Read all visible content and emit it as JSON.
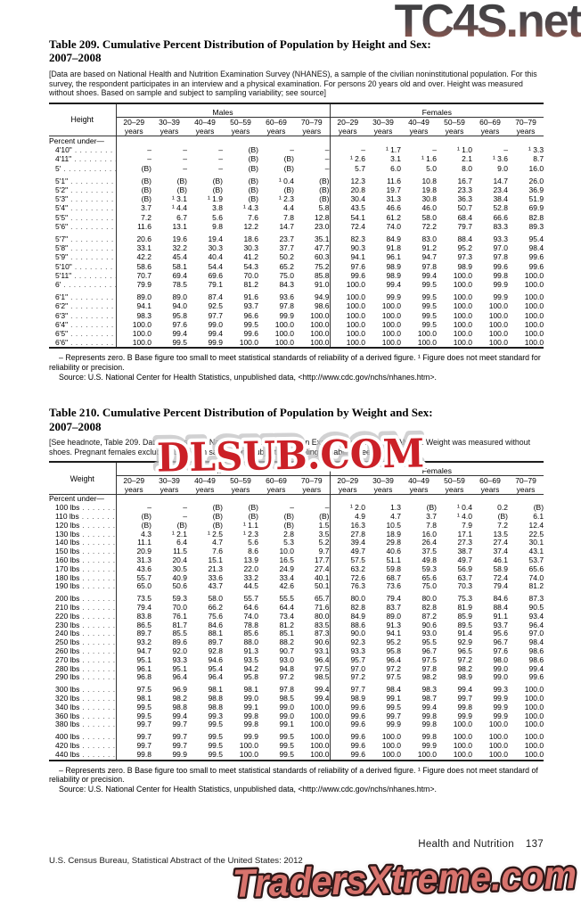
{
  "watermarks": {
    "top": "TC4S.net",
    "middle": "DLSUB.COM",
    "bottom": "TradersXtreme.com"
  },
  "shared": {
    "group_headers": [
      "Males",
      "Females"
    ],
    "age_groups": [
      "20–29",
      "30–39",
      "40–49",
      "50–59",
      "60–69",
      "70–79"
    ],
    "years_word": "years"
  },
  "tables": [
    {
      "title_line1": "Table 209. Cumulative Percent Distribution of Population by Height and Sex:",
      "title_line2": "2007–2008",
      "headnote": "[Data are based on National Health and Nutrition Examination Survey (NHANES), a sample of the civilian noninstitutional population. For this survey, the respondent participates in an interview and a physical examination. For persons 20 years old and over. Height was measured without shoes. Based on sample and subject to sampling variability; see source]",
      "stub_header": "Height",
      "section_label": "Percent under—",
      "rows": [
        {
          "label": "4'10\"",
          "group_start": false,
          "values": [
            "–",
            "–",
            "–",
            "(B)",
            "–",
            "–",
            "–",
            "¹ 1.7",
            "–",
            "¹ 1.0",
            "–",
            "¹ 3.3"
          ]
        },
        {
          "label": "4'11\"",
          "group_start": false,
          "values": [
            "–",
            "–",
            "–",
            "(B)",
            "(B)",
            "–",
            "¹ 2.6",
            "3.1",
            "¹ 1.6",
            "2.1",
            "¹ 3.6",
            "8.7"
          ]
        },
        {
          "label": "5'",
          "group_start": false,
          "values": [
            "(B)",
            "–",
            "–",
            "(B)",
            "(B)",
            "–",
            "5.7",
            "6.0",
            "5.0",
            "8.0",
            "9.0",
            "16.0"
          ]
        },
        {
          "label": "5'1\"",
          "group_start": true,
          "values": [
            "(B)",
            "(B)",
            "(B)",
            "(B)",
            "¹ 0.4",
            "(B)",
            "12.3",
            "11.6",
            "10.8",
            "16.7",
            "14.7",
            "26.0"
          ]
        },
        {
          "label": "5'2\"",
          "group_start": false,
          "values": [
            "(B)",
            "(B)",
            "(B)",
            "(B)",
            "(B)",
            "(B)",
            "20.8",
            "19.7",
            "19.8",
            "23.3",
            "23.4",
            "36.9"
          ]
        },
        {
          "label": "5'3\"",
          "group_start": false,
          "values": [
            "(B)",
            "¹ 3.1",
            "¹ 1.9",
            "(B)",
            "¹ 2.3",
            "(B)",
            "30.4",
            "31.3",
            "30.8",
            "36.3",
            "38.4",
            "51.9"
          ]
        },
        {
          "label": "5'4\"",
          "group_start": false,
          "values": [
            "3.7",
            "¹ 4.4",
            "3.8",
            "¹ 4.3",
            "4.4",
            "5.8",
            "43.5",
            "46.6",
            "46.0",
            "50.7",
            "52.8",
            "69.9"
          ]
        },
        {
          "label": "5'5\"",
          "group_start": false,
          "values": [
            "7.2",
            "6.7",
            "5.6",
            "7.6",
            "7.8",
            "12.8",
            "54.1",
            "61.2",
            "58.0",
            "68.4",
            "66.6",
            "82.8"
          ]
        },
        {
          "label": "5'6\"",
          "group_start": false,
          "values": [
            "11.6",
            "13.1",
            "9.8",
            "12.2",
            "14.7",
            "23.0",
            "72.4",
            "74.0",
            "72.2",
            "79.7",
            "83.3",
            "89.3"
          ]
        },
        {
          "label": "5'7\"",
          "group_start": true,
          "values": [
            "20.6",
            "19.6",
            "19.4",
            "18.6",
            "23.7",
            "35.1",
            "82.3",
            "84.9",
            "83.0",
            "88.4",
            "93.3",
            "95.4"
          ]
        },
        {
          "label": "5'8\"",
          "group_start": false,
          "values": [
            "33.1",
            "32.2",
            "30.3",
            "30.3",
            "37.7",
            "47.7",
            "90.3",
            "91.8",
            "91.2",
            "95.2",
            "97.0",
            "98.4"
          ]
        },
        {
          "label": "5'9\"",
          "group_start": false,
          "values": [
            "42.2",
            "45.4",
            "40.4",
            "41.2",
            "50.2",
            "60.3",
            "94.1",
            "96.1",
            "94.7",
            "97.3",
            "97.8",
            "99.6"
          ]
        },
        {
          "label": "5'10\"",
          "group_start": false,
          "values": [
            "58.6",
            "58.1",
            "54.4",
            "54.3",
            "65.2",
            "75.2",
            "97.6",
            "98.9",
            "97.8",
            "98.9",
            "99.6",
            "99.6"
          ]
        },
        {
          "label": "5'11\"",
          "group_start": false,
          "values": [
            "70.7",
            "69.4",
            "69.6",
            "70.0",
            "75.0",
            "85.8",
            "99.6",
            "98.9",
            "99.4",
            "100.0",
            "99.8",
            "100.0"
          ]
        },
        {
          "label": "6'",
          "group_start": false,
          "values": [
            "79.9",
            "78.5",
            "79.1",
            "81.2",
            "84.3",
            "91.0",
            "100.0",
            "99.4",
            "99.5",
            "100.0",
            "99.9",
            "100.0"
          ]
        },
        {
          "label": "6'1\"",
          "group_start": true,
          "values": [
            "89.0",
            "89.0",
            "87.4",
            "91.6",
            "93.6",
            "94.9",
            "100.0",
            "99.9",
            "99.5",
            "100.0",
            "99.9",
            "100.0"
          ]
        },
        {
          "label": "6'2\"",
          "group_start": false,
          "values": [
            "94.1",
            "94.0",
            "92.5",
            "93.7",
            "97.8",
            "98.6",
            "100.0",
            "100.0",
            "99.5",
            "100.0",
            "100.0",
            "100.0"
          ]
        },
        {
          "label": "6'3\"",
          "group_start": false,
          "values": [
            "98.3",
            "95.8",
            "97.7",
            "96.6",
            "99.9",
            "100.0",
            "100.0",
            "100.0",
            "99.5",
            "100.0",
            "100.0",
            "100.0"
          ]
        },
        {
          "label": "6'4\"",
          "group_start": false,
          "values": [
            "100.0",
            "97.6",
            "99.0",
            "99.5",
            "100.0",
            "100.0",
            "100.0",
            "100.0",
            "99.5",
            "100.0",
            "100.0",
            "100.0"
          ]
        },
        {
          "label": "6'5\"",
          "group_start": false,
          "values": [
            "100.0",
            "99.4",
            "99.4",
            "99.6",
            "100.0",
            "100.0",
            "100.0",
            "100.0",
            "100.0",
            "100.0",
            "100.0",
            "100.0"
          ]
        },
        {
          "label": "6'6\"",
          "group_start": false,
          "values": [
            "100.0",
            "99.5",
            "99.9",
            "100.0",
            "100.0",
            "100.0",
            "100.0",
            "100.0",
            "100.0",
            "100.0",
            "100.0",
            "100.0"
          ]
        }
      ],
      "footnote": "– Represents zero. B Base figure too small to meet statistical standards of reliability of a derived figure. ¹ Figure does not meet standard for reliability or precision.",
      "source": "Source: U.S. National Center for Health Statistics, unpublished data, <http://www.cdc.gov/nchs/nhanes.htm>."
    },
    {
      "title_line1": "Table 210. Cumulative Percent Distribution of Population by Weight and Sex:",
      "title_line2": "2007–2008",
      "headnote": "[See headnote, Table 209. Data are based on National Health and Nutrition Examination Survey (NHANES). Weight was measured without shoes. Pregnant females excluded. Based on sample and subject to sampling variability; see source]",
      "stub_header": "Weight",
      "section_label": "Percent under—",
      "rows": [
        {
          "label": "100 lbs",
          "group_start": false,
          "values": [
            "–",
            "–",
            "(B)",
            "(B)",
            "–",
            "–",
            "¹ 2.0",
            "1.3",
            "(B)",
            "¹ 0.4",
            "0.2",
            "(B)"
          ]
        },
        {
          "label": "110 lbs",
          "group_start": false,
          "values": [
            "(B)",
            "–",
            "(B)",
            "(B)",
            "(B)",
            "(B)",
            "4.9",
            "4.7",
            "3.7",
            "¹ 4.0",
            "(B)",
            "6.1"
          ]
        },
        {
          "label": "120 lbs",
          "group_start": false,
          "values": [
            "(B)",
            "(B)",
            "(B)",
            "¹ 1.1",
            "(B)",
            "1.5",
            "16.3",
            "10.5",
            "7.8",
            "7.9",
            "7.2",
            "12.4"
          ]
        },
        {
          "label": "130 lbs",
          "group_start": false,
          "values": [
            "4.3",
            "¹ 2.1",
            "¹ 2.5",
            "¹ 2.3",
            "2.8",
            "3.5",
            "27.8",
            "18.9",
            "16.0",
            "17.1",
            "13.5",
            "22.5"
          ]
        },
        {
          "label": "140 lbs",
          "group_start": false,
          "values": [
            "11.1",
            "6.4",
            "4.7",
            "5.6",
            "5.3",
            "5.2",
            "39.4",
            "29.8",
            "26.4",
            "27.3",
            "27.4",
            "30.1"
          ]
        },
        {
          "label": "150 lbs",
          "group_start": false,
          "values": [
            "20.9",
            "11.5",
            "7.6",
            "8.6",
            "10.0",
            "9.7",
            "49.7",
            "40.6",
            "37.5",
            "38.7",
            "37.4",
            "43.1"
          ]
        },
        {
          "label": "160 lbs",
          "group_start": false,
          "values": [
            "31.3",
            "20.4",
            "15.1",
            "13.9",
            "16.5",
            "17.7",
            "57.5",
            "51.1",
            "49.8",
            "49.7",
            "46.1",
            "53.7"
          ]
        },
        {
          "label": "170 lbs",
          "group_start": false,
          "values": [
            "43.6",
            "30.5",
            "21.3",
            "22.0",
            "24.9",
            "27.4",
            "63.2",
            "59.8",
            "59.3",
            "56.9",
            "58.9",
            "65.6"
          ]
        },
        {
          "label": "180 lbs",
          "group_start": false,
          "values": [
            "55.7",
            "40.9",
            "33.6",
            "33.2",
            "33.4",
            "40.1",
            "72.6",
            "68.7",
            "65.6",
            "63.7",
            "72.4",
            "74.0"
          ]
        },
        {
          "label": "190 lbs",
          "group_start": false,
          "values": [
            "65.0",
            "50.6",
            "43.7",
            "44.5",
            "42.6",
            "50.1",
            "76.3",
            "73.6",
            "75.0",
            "70.3",
            "79.4",
            "81.2"
          ]
        },
        {
          "label": "200 lbs",
          "group_start": true,
          "values": [
            "73.5",
            "59.3",
            "58.0",
            "55.7",
            "55.5",
            "65.7",
            "80.0",
            "79.4",
            "80.0",
            "75.3",
            "84.6",
            "87.3"
          ]
        },
        {
          "label": "210 lbs",
          "group_start": false,
          "values": [
            "79.4",
            "70.0",
            "66.2",
            "64.6",
            "64.4",
            "71.6",
            "82.8",
            "83.7",
            "82.8",
            "81.9",
            "88.4",
            "90.5"
          ]
        },
        {
          "label": "220 lbs",
          "group_start": false,
          "values": [
            "83.8",
            "76.1",
            "75.6",
            "74.0",
            "73.4",
            "80.0",
            "84.9",
            "89.0",
            "87.2",
            "85.9",
            "91.1",
            "93.4"
          ]
        },
        {
          "label": "230 lbs",
          "group_start": false,
          "values": [
            "86.5",
            "81.7",
            "84.6",
            "78.8",
            "81.2",
            "83.5",
            "88.6",
            "91.3",
            "90.6",
            "89.5",
            "93.7",
            "96.4"
          ]
        },
        {
          "label": "240 lbs",
          "group_start": false,
          "values": [
            "89.7",
            "85.5",
            "88.1",
            "85.6",
            "85.1",
            "87.3",
            "90.0",
            "94.1",
            "93.0",
            "91.4",
            "95.6",
            "97.0"
          ]
        },
        {
          "label": "250 lbs",
          "group_start": false,
          "values": [
            "93.2",
            "89.6",
            "89.7",
            "88.0",
            "88.2",
            "90.6",
            "92.3",
            "95.2",
            "95.5",
            "92.9",
            "96.7",
            "98.4"
          ]
        },
        {
          "label": "260 lbs",
          "group_start": false,
          "values": [
            "94.7",
            "92.0",
            "92.8",
            "91.3",
            "90.7",
            "93.1",
            "93.3",
            "95.8",
            "96.7",
            "96.5",
            "97.6",
            "98.6"
          ]
        },
        {
          "label": "270 lbs",
          "group_start": false,
          "values": [
            "95.1",
            "93.3",
            "94.6",
            "93.5",
            "93.0",
            "96.4",
            "95.7",
            "96.4",
            "97.5",
            "97.2",
            "98.0",
            "98.6"
          ]
        },
        {
          "label": "280 lbs",
          "group_start": false,
          "values": [
            "96.1",
            "95.1",
            "95.4",
            "94.2",
            "94.8",
            "97.5",
            "97.0",
            "97.2",
            "97.8",
            "98.2",
            "99.0",
            "99.4"
          ]
        },
        {
          "label": "290 lbs",
          "group_start": false,
          "values": [
            "96.8",
            "96.4",
            "96.4",
            "95.8",
            "97.2",
            "98.5",
            "97.2",
            "97.5",
            "98.2",
            "98.9",
            "99.0",
            "99.6"
          ]
        },
        {
          "label": "300 lbs",
          "group_start": true,
          "values": [
            "97.5",
            "96.9",
            "98.1",
            "98.1",
            "97.8",
            "99.4",
            "97.7",
            "98.4",
            "98.3",
            "99.4",
            "99.3",
            "100.0"
          ]
        },
        {
          "label": "320 lbs",
          "group_start": false,
          "values": [
            "98.1",
            "98.2",
            "98.8",
            "99.0",
            "98.5",
            "99.4",
            "98.9",
            "99.1",
            "98.7",
            "99.7",
            "99.9",
            "100.0"
          ]
        },
        {
          "label": "340 lbs",
          "group_start": false,
          "values": [
            "99.5",
            "98.8",
            "98.8",
            "99.1",
            "99.0",
            "100.0",
            "99.6",
            "99.5",
            "99.4",
            "99.8",
            "99.9",
            "100.0"
          ]
        },
        {
          "label": "360 lbs",
          "group_start": false,
          "values": [
            "99.5",
            "99.4",
            "99.3",
            "99.8",
            "99.0",
            "100.0",
            "99.6",
            "99.7",
            "99.8",
            "99.9",
            "99.9",
            "100.0"
          ]
        },
        {
          "label": "380 lbs",
          "group_start": false,
          "values": [
            "99.7",
            "99.7",
            "99.5",
            "99.8",
            "99.1",
            "100.0",
            "99.6",
            "99.9",
            "99.8",
            "100.0",
            "100.0",
            "100.0"
          ]
        },
        {
          "label": "400 lbs",
          "group_start": true,
          "values": [
            "99.7",
            "99.7",
            "99.5",
            "99.9",
            "99.5",
            "100.0",
            "99.6",
            "100.0",
            "99.8",
            "100.0",
            "100.0",
            "100.0"
          ]
        },
        {
          "label": "420 lbs",
          "group_start": false,
          "values": [
            "99.7",
            "99.7",
            "99.5",
            "100.0",
            "99.5",
            "100.0",
            "99.6",
            "100.0",
            "99.9",
            "100.0",
            "100.0",
            "100.0"
          ]
        },
        {
          "label": "440 lbs",
          "group_start": false,
          "values": [
            "99.8",
            "99.9",
            "99.5",
            "100.0",
            "99.5",
            "100.0",
            "99.6",
            "100.0",
            "100.0",
            "100.0",
            "100.0",
            "100.0"
          ]
        }
      ],
      "footnote": "– Represents zero. B Base figure too small to meet statistical standards of reliability of a derived figure. ¹ Figure does not meet standard of reliability or precision.",
      "source": "Source: U.S. National Center for Health Statistics, unpublished data, <http://www.cdc.gov/nchs/nhanes.htm>."
    }
  ],
  "page_footer": {
    "left": "U.S. Census Bureau, Statistical Abstract of the United States: 2012",
    "right_title": "Health and Nutrition",
    "right_page": "137"
  }
}
